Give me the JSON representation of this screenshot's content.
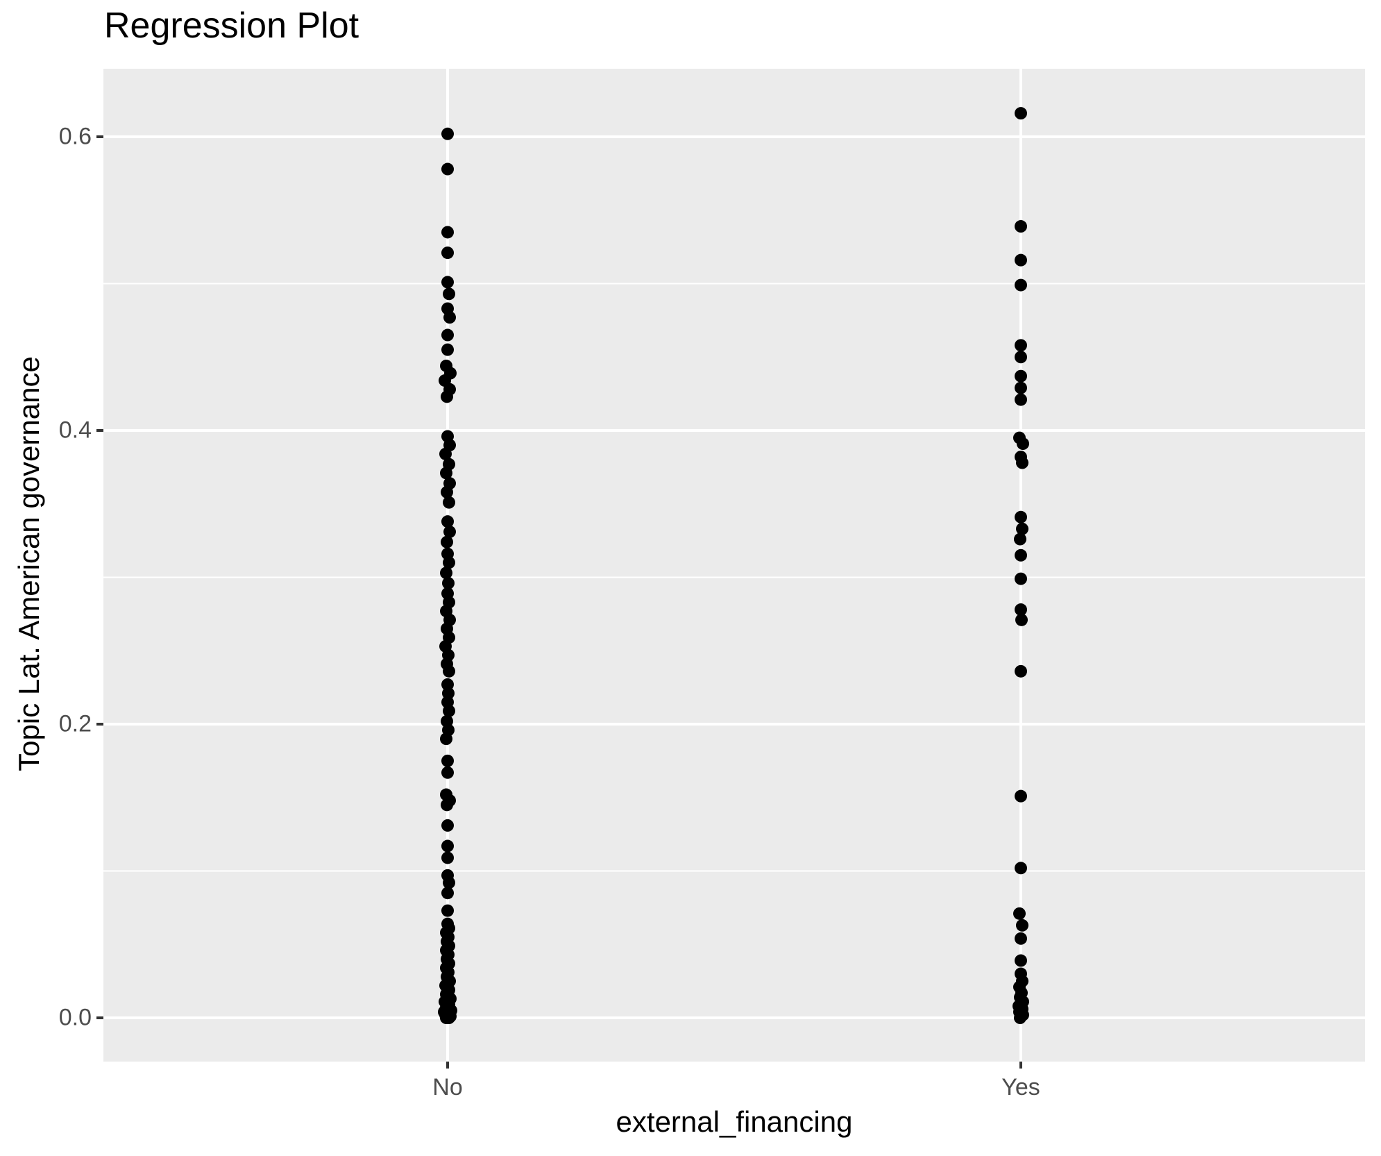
{
  "page": {
    "background": "#FFFFFF"
  },
  "chart_data": {
    "type": "scatter",
    "title": "Regression Plot",
    "xlabel": "external_financing",
    "ylabel": "Topic Lat. American governance",
    "categories": [
      "No",
      "Yes"
    ],
    "x_tick_labels": [
      "No",
      "Yes"
    ],
    "y_tick_values": [
      0.0,
      0.2,
      0.4,
      0.6
    ],
    "y_tick_labels": [
      "0.0",
      "0.2",
      "0.4",
      "0.6"
    ],
    "y_minor_tick_values": [
      0.1,
      0.3,
      0.5
    ],
    "ylim": [
      -0.03,
      0.646
    ],
    "grid": true,
    "legend": "none",
    "colors": {
      "panel_background": "#EBEBEB",
      "gridline": "#FFFFFF",
      "point": "#000000",
      "tick_mark": "#333333",
      "tick_label": "#4D4D4D",
      "text": "#000000"
    },
    "series": [
      {
        "name": "No",
        "points": [
          [
            0.602,
            0
          ],
          [
            0.578,
            0
          ],
          [
            0.535,
            0
          ],
          [
            0.521,
            0
          ],
          [
            0.501,
            0
          ],
          [
            0.493,
            2
          ],
          [
            0.483,
            0
          ],
          [
            0.477,
            3
          ],
          [
            0.465,
            0
          ],
          [
            0.455,
            0
          ],
          [
            0.444,
            -2
          ],
          [
            0.439,
            4
          ],
          [
            0.434,
            -4
          ],
          [
            0.428,
            3
          ],
          [
            0.423,
            -1
          ],
          [
            0.396,
            0
          ],
          [
            0.39,
            3
          ],
          [
            0.384,
            -3
          ],
          [
            0.377,
            2
          ],
          [
            0.371,
            -2
          ],
          [
            0.364,
            3
          ],
          [
            0.358,
            -1
          ],
          [
            0.351,
            2
          ],
          [
            0.338,
            0
          ],
          [
            0.331,
            3
          ],
          [
            0.324,
            -1
          ],
          [
            0.316,
            0
          ],
          [
            0.31,
            2
          ],
          [
            0.303,
            -2
          ],
          [
            0.296,
            1
          ],
          [
            0.289,
            0
          ],
          [
            0.283,
            2
          ],
          [
            0.277,
            -2
          ],
          [
            0.271,
            3
          ],
          [
            0.265,
            -1
          ],
          [
            0.259,
            2
          ],
          [
            0.253,
            -3
          ],
          [
            0.247,
            1
          ],
          [
            0.241,
            -1
          ],
          [
            0.236,
            2
          ],
          [
            0.227,
            0
          ],
          [
            0.221,
            1
          ],
          [
            0.215,
            0
          ],
          [
            0.209,
            2
          ],
          [
            0.202,
            -1
          ],
          [
            0.196,
            1
          ],
          [
            0.19,
            -2
          ],
          [
            0.175,
            0
          ],
          [
            0.167,
            0
          ],
          [
            0.152,
            -2
          ],
          [
            0.148,
            3
          ],
          [
            0.145,
            -1
          ],
          [
            0.131,
            0
          ],
          [
            0.117,
            0
          ],
          [
            0.109,
            0
          ],
          [
            0.097,
            0
          ],
          [
            0.092,
            2
          ],
          [
            0.085,
            0
          ],
          [
            0.073,
            0
          ],
          [
            0.064,
            0
          ],
          [
            0.061,
            2
          ],
          [
            0.058,
            -2
          ],
          [
            0.055,
            1
          ],
          [
            0.052,
            -1
          ],
          [
            0.049,
            2
          ],
          [
            0.046,
            -2
          ],
          [
            0.043,
            1
          ],
          [
            0.04,
            -1
          ],
          [
            0.037,
            2
          ],
          [
            0.034,
            -2
          ],
          [
            0.031,
            1
          ],
          [
            0.028,
            -1
          ],
          [
            0.025,
            3
          ],
          [
            0.022,
            -3
          ],
          [
            0.019,
            2
          ],
          [
            0.016,
            -2
          ],
          [
            0.013,
            4
          ],
          [
            0.011,
            -4
          ],
          [
            0.009,
            2
          ],
          [
            0.007,
            -2
          ],
          [
            0.005,
            5
          ],
          [
            0.004,
            -5
          ],
          [
            0.003,
            3
          ],
          [
            0.002,
            -3
          ],
          [
            0.001,
            4
          ],
          [
            0.0,
            -2
          ],
          [
            0.0,
            2
          ]
        ]
      },
      {
        "name": "Yes",
        "points": [
          [
            0.616,
            0
          ],
          [
            0.539,
            0
          ],
          [
            0.516,
            0
          ],
          [
            0.499,
            0
          ],
          [
            0.458,
            0
          ],
          [
            0.45,
            0
          ],
          [
            0.437,
            0
          ],
          [
            0.429,
            0
          ],
          [
            0.421,
            0
          ],
          [
            0.395,
            -2
          ],
          [
            0.391,
            3
          ],
          [
            0.382,
            0
          ],
          [
            0.378,
            2
          ],
          [
            0.341,
            0
          ],
          [
            0.333,
            2
          ],
          [
            0.326,
            -1
          ],
          [
            0.315,
            0
          ],
          [
            0.299,
            0
          ],
          [
            0.278,
            0
          ],
          [
            0.271,
            1
          ],
          [
            0.236,
            0
          ],
          [
            0.151,
            0
          ],
          [
            0.102,
            0
          ],
          [
            0.071,
            -2
          ],
          [
            0.063,
            2
          ],
          [
            0.054,
            0
          ],
          [
            0.039,
            0
          ],
          [
            0.03,
            0
          ],
          [
            0.025,
            2
          ],
          [
            0.021,
            -2
          ],
          [
            0.017,
            1
          ],
          [
            0.014,
            -1
          ],
          [
            0.011,
            3
          ],
          [
            0.008,
            -3
          ],
          [
            0.006,
            2
          ],
          [
            0.004,
            -2
          ],
          [
            0.002,
            3
          ],
          [
            0.0,
            -1
          ]
        ]
      }
    ]
  }
}
